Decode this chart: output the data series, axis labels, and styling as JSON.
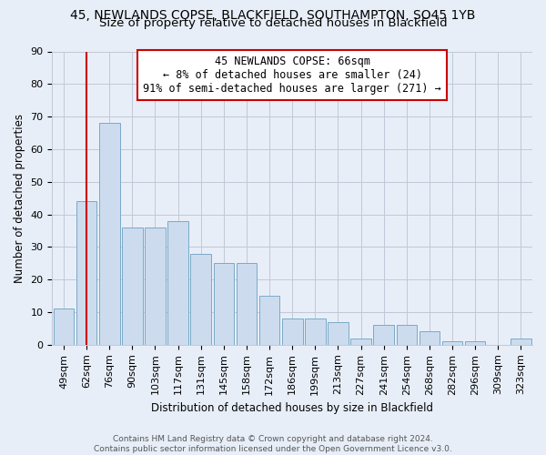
{
  "title1": "45, NEWLANDS COPSE, BLACKFIELD, SOUTHAMPTON, SO45 1YB",
  "title2": "Size of property relative to detached houses in Blackfield",
  "xlabel": "Distribution of detached houses by size in Blackfield",
  "ylabel": "Number of detached properties",
  "categories": [
    "49sqm",
    "62sqm",
    "76sqm",
    "90sqm",
    "103sqm",
    "117sqm",
    "131sqm",
    "145sqm",
    "158sqm",
    "172sqm",
    "186sqm",
    "199sqm",
    "213sqm",
    "227sqm",
    "241sqm",
    "254sqm",
    "268sqm",
    "282sqm",
    "296sqm",
    "309sqm",
    "323sqm"
  ],
  "values": [
    11,
    44,
    68,
    36,
    36,
    38,
    28,
    25,
    25,
    15,
    8,
    8,
    7,
    2,
    6,
    6,
    4,
    1,
    1,
    0,
    2
  ],
  "bar_color": "#ccdcee",
  "bar_edge_color": "#7aaac8",
  "vline_x": 1,
  "vline_color": "#cc0000",
  "annotation_title": "45 NEWLANDS COPSE: 66sqm",
  "annotation_line1": "← 8% of detached houses are smaller (24)",
  "annotation_line2": "91% of semi-detached houses are larger (271) →",
  "annotation_box_color": "#ffffff",
  "annotation_box_edge": "#cc0000",
  "ylim": [
    0,
    90
  ],
  "yticks": [
    0,
    10,
    20,
    30,
    40,
    50,
    60,
    70,
    80,
    90
  ],
  "footer1": "Contains HM Land Registry data © Crown copyright and database right 2024.",
  "footer2": "Contains public sector information licensed under the Open Government Licence v3.0.",
  "bg_color": "#e8eef8",
  "grid_color": "#c0c8d8",
  "title1_fontsize": 10,
  "title2_fontsize": 9.5,
  "axis_label_fontsize": 8.5,
  "tick_fontsize": 8
}
